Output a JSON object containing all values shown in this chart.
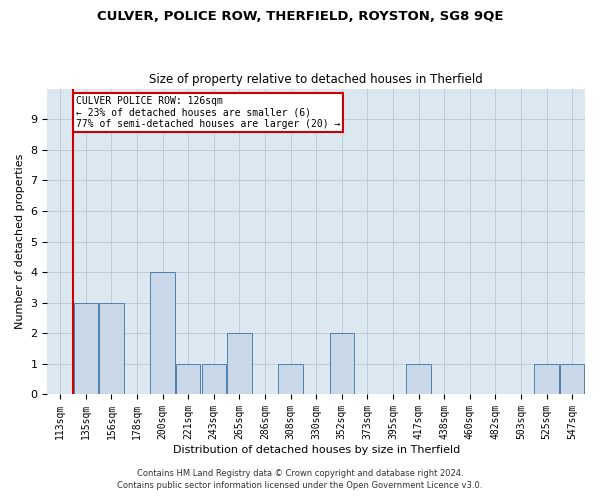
{
  "title1": "CULVER, POLICE ROW, THERFIELD, ROYSTON, SG8 9QE",
  "title2": "Size of property relative to detached houses in Therfield",
  "xlabel": "Distribution of detached houses by size in Therfield",
  "ylabel": "Number of detached properties",
  "footnote1": "Contains HM Land Registry data © Crown copyright and database right 2024.",
  "footnote2": "Contains public sector information licensed under the Open Government Licence v3.0.",
  "categories": [
    "113sqm",
    "135sqm",
    "156sqm",
    "178sqm",
    "200sqm",
    "221sqm",
    "243sqm",
    "265sqm",
    "286sqm",
    "308sqm",
    "330sqm",
    "352sqm",
    "373sqm",
    "395sqm",
    "417sqm",
    "438sqm",
    "460sqm",
    "482sqm",
    "503sqm",
    "525sqm",
    "547sqm"
  ],
  "values": [
    0,
    3,
    3,
    0,
    4,
    1,
    1,
    2,
    0,
    1,
    0,
    2,
    0,
    0,
    1,
    0,
    0,
    0,
    0,
    1,
    1
  ],
  "bar_color": "#c8d8e8",
  "bar_edge_color": "#5080b0",
  "subject_line_color": "#cc0000",
  "annotation_text": "CULVER POLICE ROW: 126sqm\n← 23% of detached houses are smaller (6)\n77% of semi-detached houses are larger (20) →",
  "annotation_box_color": "#cc0000",
  "ylim": [
    0,
    10
  ],
  "yticks": [
    0,
    1,
    2,
    3,
    4,
    5,
    6,
    7,
    8,
    9
  ],
  "grid_color": "#b8c8d8",
  "bg_color": "#dce8f0"
}
